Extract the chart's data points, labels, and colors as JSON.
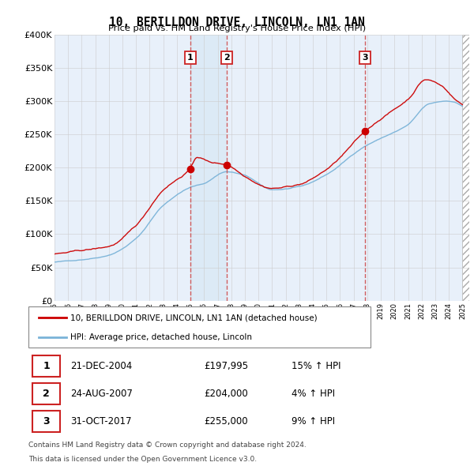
{
  "title": "10, BERILLDON DRIVE, LINCOLN, LN1 1AN",
  "subtitle": "Price paid vs. HM Land Registry's House Price Index (HPI)",
  "ylabel_ticks": [
    "£0",
    "£50K",
    "£100K",
    "£150K",
    "£200K",
    "£250K",
    "£300K",
    "£350K",
    "£400K"
  ],
  "ylim": [
    0,
    400000
  ],
  "xlim_start": 1995.0,
  "xlim_end": 2025.5,
  "sale_dates": [
    2004.97,
    2007.64,
    2017.83
  ],
  "sale_prices": [
    197995,
    204000,
    255000
  ],
  "sale_labels": [
    "1",
    "2",
    "3"
  ],
  "sale_date_labels": [
    "21-DEC-2004",
    "24-AUG-2007",
    "31-OCT-2017"
  ],
  "sale_price_labels": [
    "£197,995",
    "£204,000",
    "£255,000"
  ],
  "sale_pct_labels": [
    "15% ↑ HPI",
    "4% ↑ HPI",
    "9% ↑ HPI"
  ],
  "legend_line1": "10, BERILLDON DRIVE, LINCOLN, LN1 1AN (detached house)",
  "legend_line2": "HPI: Average price, detached house, Lincoln",
  "footer_line1": "Contains HM Land Registry data © Crown copyright and database right 2024.",
  "footer_line2": "This data is licensed under the Open Government Licence v3.0.",
  "red_color": "#cc0000",
  "blue_color": "#7ab3d8",
  "blue_fill": "#d8e8f5",
  "vline_color": "#cc4444",
  "background_color": "#e8f0fa",
  "plot_bg": "#ffffff",
  "grid_color": "#cccccc"
}
